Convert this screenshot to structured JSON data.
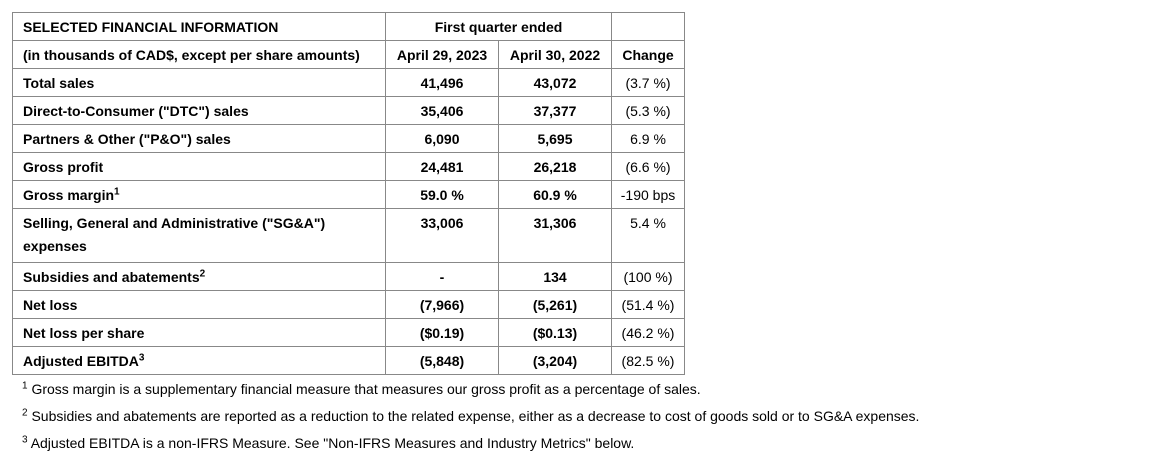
{
  "table": {
    "title": "SELECTED FINANCIAL INFORMATION",
    "subtitle": "(in thousands of CAD$, except per share amounts)",
    "period_header": "First quarter ended",
    "columns": [
      "April 29, 2023",
      "April 30, 2022",
      "Change"
    ],
    "rows": [
      {
        "label": "Total sales",
        "cells": [
          "41,496",
          "43,072",
          "(3.7 %)"
        ]
      },
      {
        "label": "Direct-to-Consumer (\"DTC\") sales",
        "cells": [
          "35,406",
          "37,377",
          "(5.3 %)"
        ]
      },
      {
        "label": "Partners & Other (\"P&O\") sales",
        "cells": [
          "6,090",
          "5,695",
          "6.9 %"
        ]
      },
      {
        "label": "Gross profit",
        "cells": [
          "24,481",
          "26,218",
          "(6.6 %)"
        ]
      },
      {
        "label": "Gross margin",
        "note": "1",
        "cells": [
          "59.0 %",
          "60.9 %",
          "-190 bps"
        ]
      },
      {
        "label": "Selling, General and Administrative (\"SG&A\") expenses",
        "cells": [
          "33,006",
          "31,306",
          "5.4 %"
        ]
      },
      {
        "label": "Subsidies and abatements",
        "note": "2",
        "cells": [
          "-",
          "134",
          "(100 %)"
        ]
      },
      {
        "label": "Net loss",
        "cells": [
          "(7,966)",
          "(5,261)",
          "(51.4 %)"
        ]
      },
      {
        "label": "Net loss per share",
        "cells": [
          "($0.19)",
          "($0.13)",
          "(46.2 %)"
        ]
      },
      {
        "label": "Adjusted EBITDA",
        "note": "3",
        "cells": [
          "(5,848)",
          "(3,204)",
          "(82.5 %)"
        ]
      }
    ]
  },
  "footnotes": [
    {
      "marker": "1",
      "text": "Gross margin is a supplementary financial measure that measures our gross profit as a percentage of sales."
    },
    {
      "marker": "2",
      "text": "Subsidies and abatements are reported as a reduction to the related expense, either as a decrease to cost of goods sold or to SG&A expenses."
    },
    {
      "marker": "3",
      "text": "Adjusted EBITDA is a non-IFRS Measure. See \"Non-IFRS Measures and Industry Metrics\" below."
    }
  ]
}
